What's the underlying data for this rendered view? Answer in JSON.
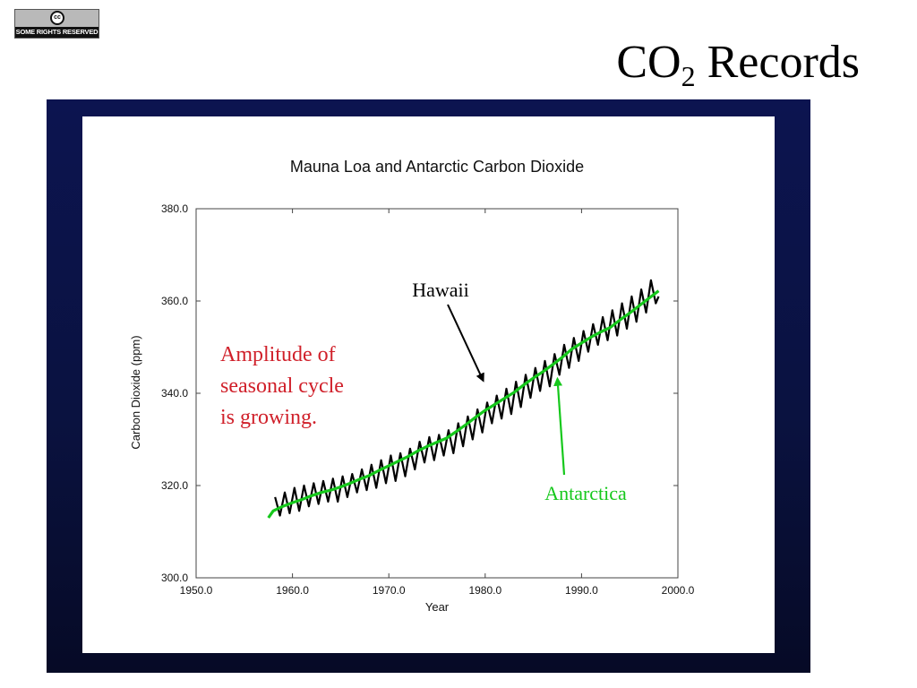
{
  "badge": {
    "symbol": "cc",
    "text": "SOME RIGHTS RESERVED"
  },
  "slide": {
    "title_main": "CO",
    "title_sub": "2",
    "title_rest": " Records"
  },
  "colors": {
    "hawaii": "#000000",
    "antarctica": "#16c81c",
    "amplitude_note": "#d0202a",
    "frame": "#0c1450"
  },
  "chart_data": {
    "type": "line",
    "title": "Mauna Loa and Antarctic Carbon Dioxide",
    "xlabel": "Year",
    "ylabel": "Carbon Dioxide (ppm)",
    "xlim": [
      1950,
      2000
    ],
    "ylim": [
      300,
      380
    ],
    "xticks": [
      1950,
      1960,
      1970,
      1980,
      1990,
      2000
    ],
    "xtick_labels": [
      "1950.0",
      "1960.0",
      "1970.0",
      "1980.0",
      "1990.0",
      "2000.0"
    ],
    "yticks": [
      300,
      320,
      340,
      360,
      380
    ],
    "ytick_labels": [
      "300.0",
      "320.0",
      "340.0",
      "360.0",
      "380.0"
    ],
    "grid": false,
    "series": [
      {
        "name": "Hawaii",
        "x": [
          1958.2,
          1958.7,
          1959.2,
          1959.7,
          1960.2,
          1960.7,
          1961.2,
          1961.7,
          1962.2,
          1962.7,
          1963.2,
          1963.7,
          1964.2,
          1964.7,
          1965.2,
          1965.7,
          1966.2,
          1966.7,
          1967.2,
          1967.7,
          1968.2,
          1968.7,
          1969.2,
          1969.7,
          1970.2,
          1970.7,
          1971.2,
          1971.7,
          1972.2,
          1972.7,
          1973.2,
          1973.7,
          1974.2,
          1974.7,
          1975.2,
          1975.7,
          1976.2,
          1976.7,
          1977.2,
          1977.7,
          1978.2,
          1978.7,
          1979.2,
          1979.7,
          1980.2,
          1980.7,
          1981.2,
          1981.7,
          1982.2,
          1982.7,
          1983.2,
          1983.7,
          1984.2,
          1984.7,
          1985.2,
          1985.7,
          1986.2,
          1986.7,
          1987.2,
          1987.7,
          1988.2,
          1988.7,
          1989.2,
          1989.7,
          1990.2,
          1990.7,
          1991.2,
          1991.7,
          1992.2,
          1992.7,
          1993.2,
          1993.7,
          1994.2,
          1994.7,
          1995.2,
          1995.7,
          1996.2,
          1996.7,
          1997.2,
          1997.7,
          1998.0
        ],
        "values": [
          317.5,
          313.5,
          318.5,
          314.0,
          319.5,
          314.5,
          320.0,
          315.5,
          320.5,
          316.0,
          321.0,
          316.5,
          321.5,
          316.5,
          322.0,
          317.5,
          322.5,
          318.5,
          323.5,
          319.0,
          324.5,
          319.5,
          325.5,
          320.5,
          326.5,
          321.0,
          327.0,
          322.0,
          328.0,
          323.5,
          329.5,
          325.0,
          330.5,
          325.5,
          331.0,
          326.5,
          332.0,
          327.0,
          333.5,
          328.5,
          335.0,
          330.0,
          336.5,
          331.5,
          338.0,
          333.5,
          339.5,
          334.5,
          341.0,
          335.5,
          342.5,
          337.0,
          344.0,
          339.0,
          345.5,
          340.5,
          347.0,
          341.5,
          348.5,
          344.0,
          350.5,
          345.5,
          352.0,
          347.0,
          353.5,
          349.0,
          355.0,
          350.5,
          356.5,
          351.5,
          358.0,
          352.5,
          359.5,
          354.0,
          361.0,
          355.5,
          362.5,
          357.5,
          364.5,
          359.5,
          361.0
        ]
      },
      {
        "name": "Antarctica",
        "x": [
          1957.5,
          1958,
          1959,
          1960,
          1961,
          1962,
          1963,
          1964,
          1965,
          1966,
          1967,
          1968,
          1969,
          1970,
          1971,
          1972,
          1973,
          1974,
          1975,
          1976,
          1977,
          1978,
          1979,
          1980,
          1981,
          1982,
          1983,
          1984,
          1985,
          1986,
          1987,
          1988,
          1989,
          1990,
          1991,
          1992,
          1993,
          1994,
          1995,
          1996,
          1997,
          1998
        ],
        "values": [
          313.0,
          314.5,
          315.5,
          316.3,
          317.0,
          317.8,
          318.5,
          319.0,
          319.7,
          320.5,
          321.4,
          322.2,
          323.3,
          324.3,
          325.3,
          326.3,
          327.5,
          328.5,
          329.4,
          330.3,
          331.7,
          333.2,
          334.8,
          336.3,
          337.6,
          338.9,
          340.2,
          341.8,
          343.3,
          344.7,
          346.2,
          347.8,
          349.6,
          350.9,
          352.2,
          353.3,
          354.3,
          355.9,
          357.4,
          359.0,
          360.6,
          362.2
        ]
      }
    ],
    "annotations": {
      "hawaii_label": "Hawaii",
      "antarctica_label": "Antarctica",
      "amplitude_lines": [
        "Amplitude of",
        "seasonal cycle",
        "is growing."
      ],
      "hawaii_arrow_target": {
        "x": 1979.8,
        "y": 341.0
      },
      "antarctica_arrow_target": {
        "x": 1987.5,
        "y": 344.5
      }
    }
  }
}
